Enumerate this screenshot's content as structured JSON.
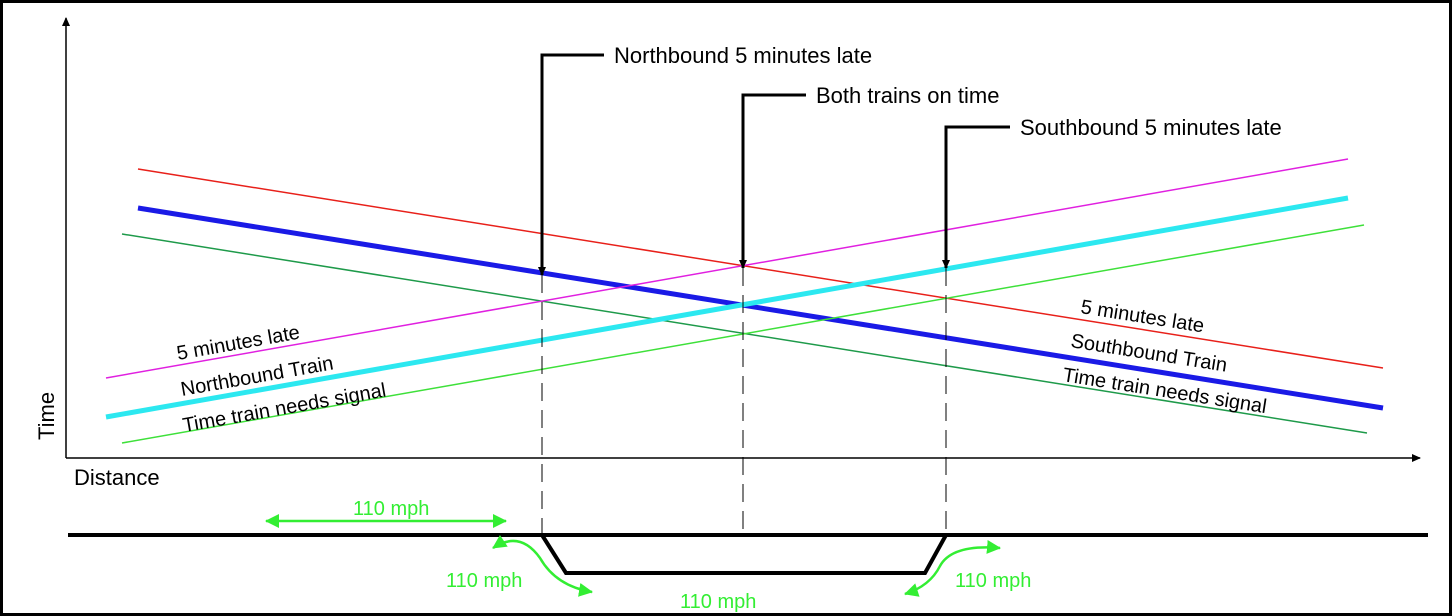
{
  "axes": {
    "x_label": "Distance",
    "y_label": "Time"
  },
  "callouts": {
    "northbound_late": "Northbound 5 minutes late",
    "on_time": "Both trains on time",
    "southbound_late": "Southbound 5 minutes late"
  },
  "northbound": {
    "late_label": "5 minutes late",
    "train_label": "Northbound Train",
    "signal_label": "Time train needs signal"
  },
  "southbound": {
    "late_label": "5 minutes late",
    "train_label": "Southbound Train",
    "signal_label": "Time train needs signal"
  },
  "speeds": {
    "main_left": "110 mph",
    "entry_left": "110 mph",
    "siding": "110 mph",
    "exit_right": "110 mph"
  },
  "colors": {
    "border": "#000000",
    "late_line_south": "#e8201a",
    "late_line_north": "#e020e0",
    "train_line_south": "#1a1ae6",
    "train_line_north": "#2ce8f0",
    "signal_line_south": "#1e9a4a",
    "signal_line_north": "#3ee03a",
    "speed_arrows": "#33ee33"
  }
}
